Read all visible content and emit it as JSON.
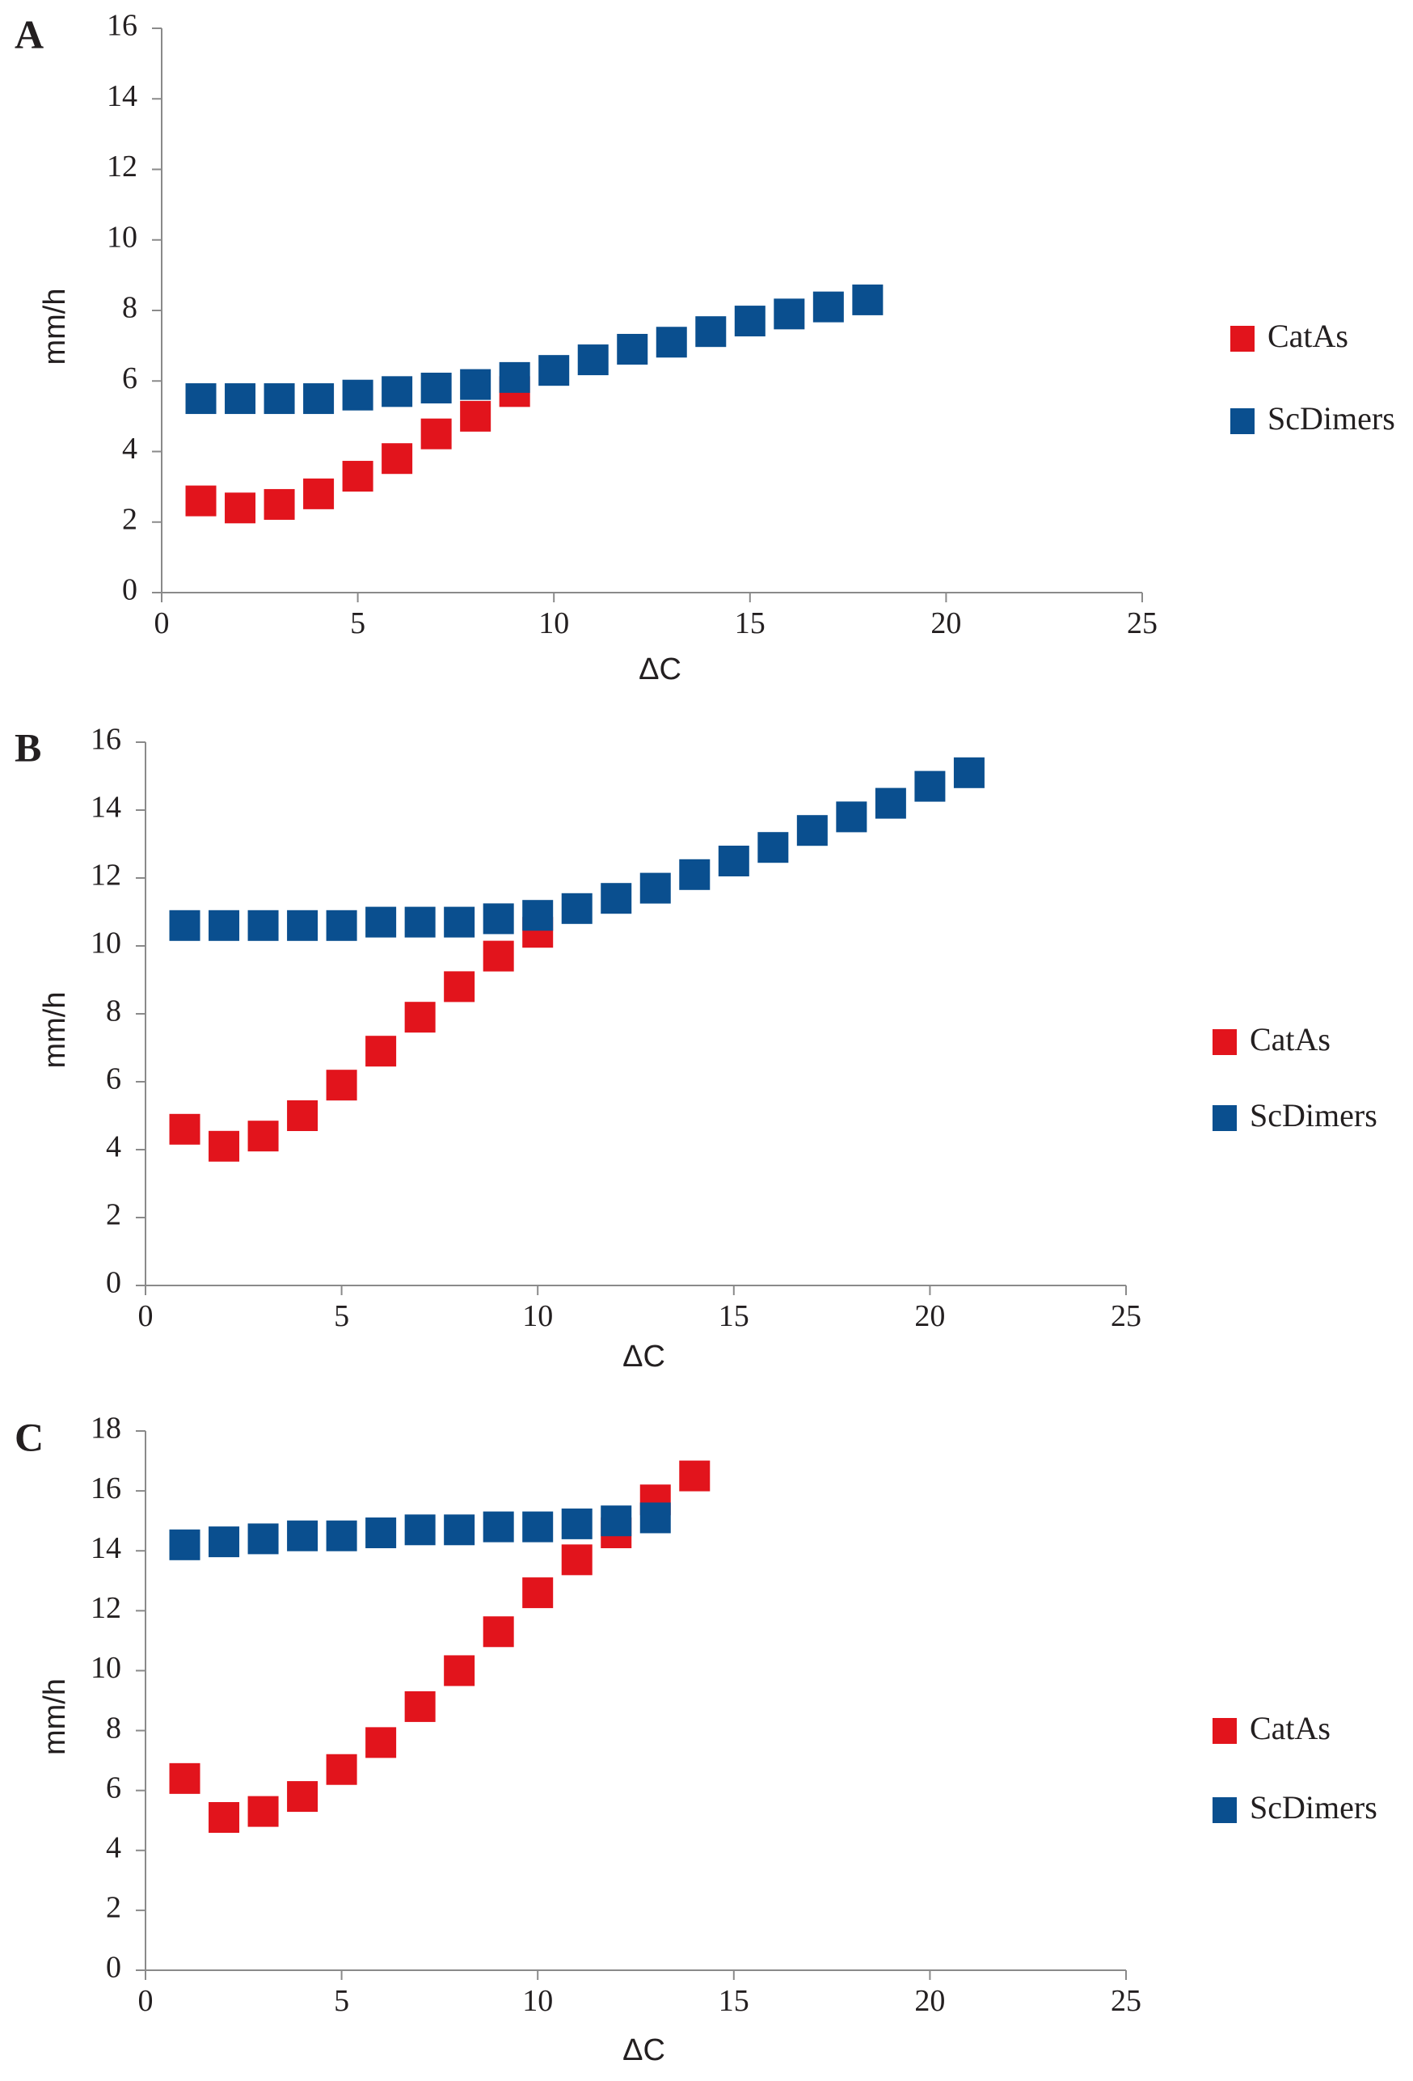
{
  "chart_data": [
    {
      "type": "scatter",
      "panel_label": "A",
      "xlabel": "ΔC",
      "ylabel": "mm/h",
      "xlim": [
        0,
        25
      ],
      "ylim": [
        0,
        16
      ],
      "xticks": [
        0,
        5,
        10,
        15,
        20,
        25
      ],
      "yticks": [
        0,
        2,
        4,
        6,
        8,
        10,
        12,
        14,
        16
      ],
      "grid": false,
      "legend_position": "right",
      "series": [
        {
          "name": "CatAs",
          "color": "#e2141c",
          "x": [
            1,
            2,
            3,
            4,
            5,
            6,
            7,
            8,
            9
          ],
          "y": [
            2.6,
            2.4,
            2.5,
            2.8,
            3.3,
            3.8,
            4.5,
            5.0,
            5.7
          ]
        },
        {
          "name": "ScDimers",
          "color": "#0a4f8f",
          "x": [
            1,
            2,
            3,
            4,
            5,
            6,
            7,
            8,
            9,
            10,
            11,
            12,
            13,
            14,
            15,
            16,
            17,
            18
          ],
          "y": [
            5.5,
            5.5,
            5.5,
            5.5,
            5.6,
            5.7,
            5.8,
            5.9,
            6.1,
            6.3,
            6.6,
            6.9,
            7.1,
            7.4,
            7.7,
            7.9,
            8.1,
            8.3
          ]
        }
      ]
    },
    {
      "type": "scatter",
      "panel_label": "B",
      "xlabel": "ΔC",
      "ylabel": "mm/h",
      "xlim": [
        0,
        25
      ],
      "ylim": [
        0,
        16
      ],
      "xticks": [
        0,
        5,
        10,
        15,
        20,
        25
      ],
      "yticks": [
        0,
        2,
        4,
        6,
        8,
        10,
        12,
        14,
        16
      ],
      "grid": false,
      "legend_position": "right",
      "series": [
        {
          "name": "CatAs",
          "color": "#e2141c",
          "x": [
            1,
            2,
            3,
            4,
            5,
            6,
            7,
            8,
            9,
            10
          ],
          "y": [
            4.6,
            4.1,
            4.4,
            5.0,
            5.9,
            6.9,
            7.9,
            8.8,
            9.7,
            10.4
          ]
        },
        {
          "name": "ScDimers",
          "color": "#0a4f8f",
          "x": [
            1,
            2,
            3,
            4,
            5,
            6,
            7,
            8,
            9,
            10,
            11,
            12,
            13,
            14,
            15,
            16,
            17,
            18,
            19,
            20,
            21
          ],
          "y": [
            10.6,
            10.6,
            10.6,
            10.6,
            10.6,
            10.7,
            10.7,
            10.7,
            10.8,
            10.9,
            11.1,
            11.4,
            11.7,
            12.1,
            12.5,
            12.9,
            13.4,
            13.8,
            14.2,
            14.7,
            15.1
          ]
        }
      ]
    },
    {
      "type": "scatter",
      "panel_label": "C",
      "xlabel": "ΔC",
      "ylabel": "mm/h",
      "xlim": [
        0,
        25
      ],
      "ylim": [
        0,
        18
      ],
      "xticks": [
        0,
        5,
        10,
        15,
        20,
        25
      ],
      "yticks": [
        0,
        2,
        4,
        6,
        8,
        10,
        12,
        14,
        16,
        18
      ],
      "grid": false,
      "legend_position": "right",
      "series": [
        {
          "name": "CatAs",
          "color": "#e2141c",
          "x": [
            1,
            2,
            3,
            4,
            5,
            6,
            7,
            8,
            9,
            10,
            11,
            12,
            13,
            14
          ],
          "y": [
            6.4,
            5.1,
            5.3,
            5.8,
            6.7,
            7.6,
            8.8,
            10.0,
            11.3,
            12.6,
            13.7,
            14.6,
            15.7,
            16.5
          ]
        },
        {
          "name": "ScDimers",
          "color": "#0a4f8f",
          "x": [
            1,
            2,
            3,
            4,
            5,
            6,
            7,
            8,
            9,
            10,
            11,
            12,
            13
          ],
          "y": [
            14.2,
            14.3,
            14.4,
            14.5,
            14.5,
            14.6,
            14.7,
            14.7,
            14.8,
            14.8,
            14.9,
            15.0,
            15.1
          ]
        }
      ]
    }
  ]
}
